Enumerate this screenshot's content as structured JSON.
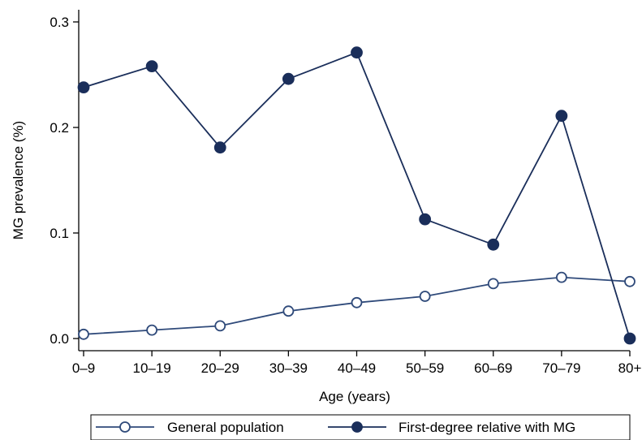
{
  "chart_data": {
    "type": "line",
    "title": "",
    "xlabel": "Age (years)",
    "ylabel": "MG prevalence (%)",
    "categories": [
      "0–9",
      "10–19",
      "20–29",
      "30–39",
      "40–49",
      "50–59",
      "60–69",
      "70–79",
      "80+"
    ],
    "ylim": [
      0,
      0.3
    ],
    "yticks": [
      {
        "value": 0,
        "label": "0.0"
      },
      {
        "value": 0.1,
        "label": "0.1"
      },
      {
        "value": 0.2,
        "label": "0.2"
      },
      {
        "value": 0.3,
        "label": "0.3"
      }
    ],
    "grid": false,
    "legend_position": "bottom",
    "series": [
      {
        "name": "General population",
        "marker": "hollow-circle",
        "color": "#2f4a7a",
        "values": [
          0.004,
          0.008,
          0.012,
          0.026,
          0.034,
          0.04,
          0.052,
          0.058,
          0.054
        ]
      },
      {
        "name": "First-degree relative with MG",
        "marker": "filled-circle",
        "color": "#1a2e5a",
        "values": [
          0.238,
          0.258,
          0.181,
          0.246,
          0.271,
          0.113,
          0.089,
          0.211,
          0.0
        ]
      }
    ]
  }
}
